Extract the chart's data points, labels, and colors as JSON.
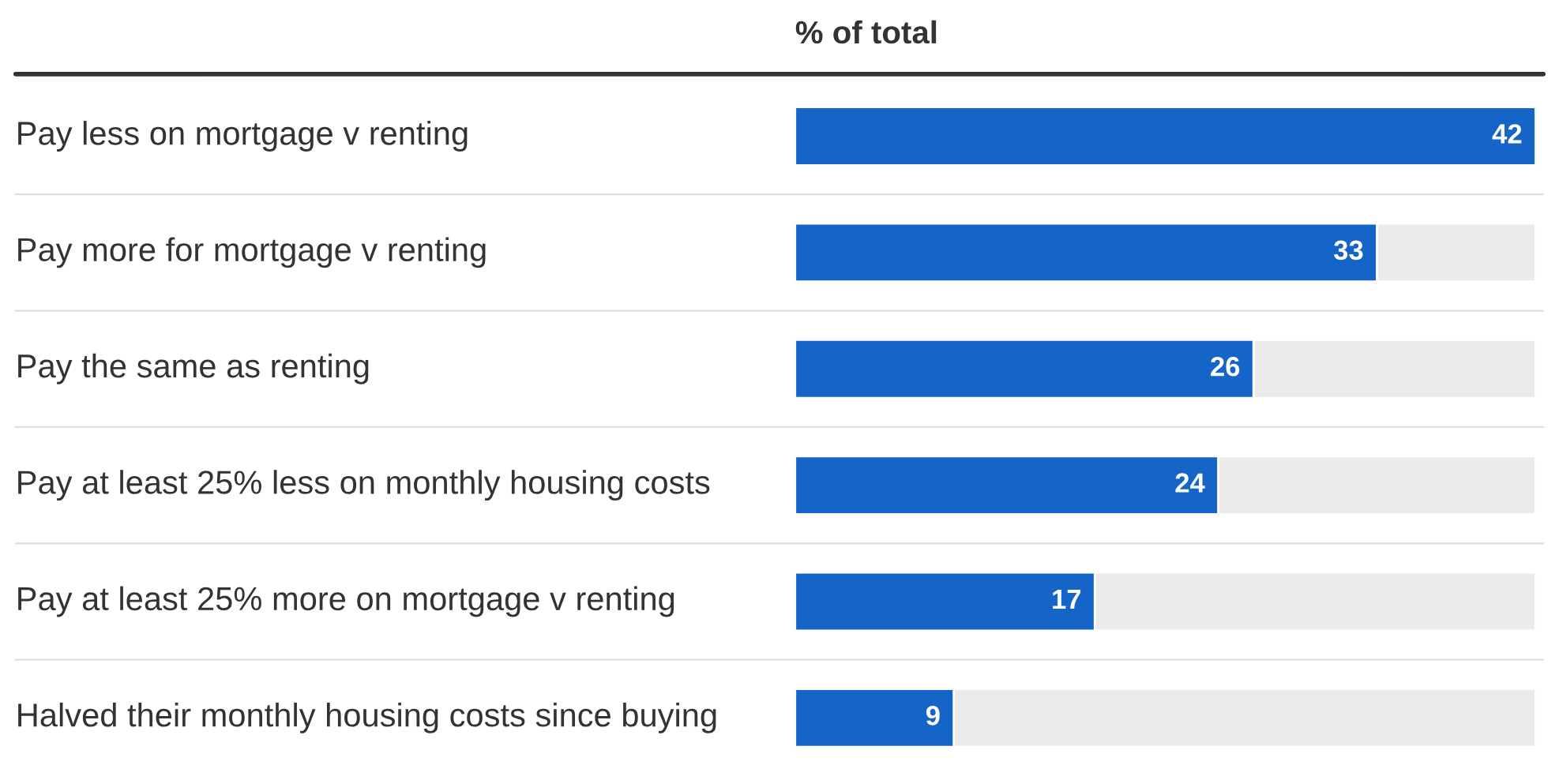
{
  "chart_data": {
    "type": "bar",
    "orientation": "horizontal",
    "xlabel": "% of total",
    "categories": [
      "Pay less on mortgage v renting",
      "Pay more for mortgage v renting",
      "Pay the same as renting",
      "Pay at least 25% less on monthly housing costs",
      "Pay at least 25% more on mortgage v renting",
      "Halved their monthly housing costs since buying"
    ],
    "values": [
      42,
      33,
      26,
      24,
      17,
      9
    ],
    "color": "#1565c8",
    "data_labels": true
  }
}
